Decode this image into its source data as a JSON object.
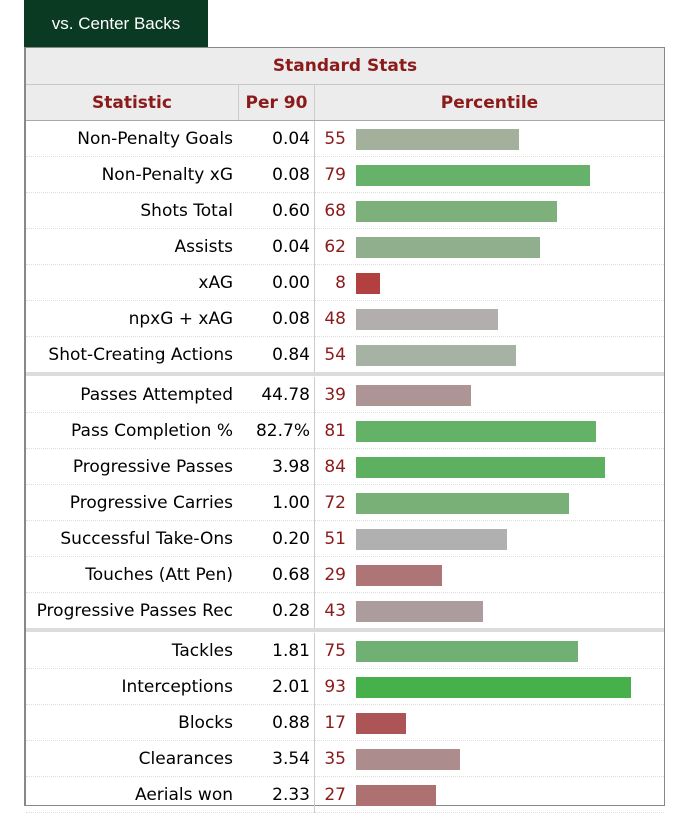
{
  "tab": {
    "label": "vs. Center Backs"
  },
  "table": {
    "title": "Standard Stats",
    "headers": {
      "statistic": "Statistic",
      "per90": "Per 90",
      "percentile": "Percentile"
    },
    "groups": [
      [
        {
          "stat": "Non-Penalty Goals",
          "per90": "0.04",
          "pct": 55,
          "color": "#a2b09c"
        },
        {
          "stat": "Non-Penalty xG",
          "per90": "0.08",
          "pct": 79,
          "color": "#67b26a"
        },
        {
          "stat": "Shots Total",
          "per90": "0.60",
          "pct": 68,
          "color": "#7db07b"
        },
        {
          "stat": "Assists",
          "per90": "0.04",
          "pct": 62,
          "color": "#90b08d"
        },
        {
          "stat": "xAG",
          "per90": "0.00",
          "pct": 8,
          "color": "#b1403f"
        },
        {
          "stat": "npxG + xAG",
          "per90": "0.08",
          "pct": 48,
          "color": "#b2aeae"
        },
        {
          "stat": "Shot-Creating Actions",
          "per90": "0.84",
          "pct": 54,
          "color": "#a6b2a4"
        }
      ],
      [
        {
          "stat": "Passes Attempted",
          "per90": "44.78",
          "pct": 39,
          "color": "#ad9595"
        },
        {
          "stat": "Pass Completion %",
          "per90": "82.7%",
          "pct": 81,
          "color": "#63b267"
        },
        {
          "stat": "Progressive Passes",
          "per90": "3.98",
          "pct": 84,
          "color": "#5cb060"
        },
        {
          "stat": "Progressive Carries",
          "per90": "1.00",
          "pct": 72,
          "color": "#78b078"
        },
        {
          "stat": "Successful Take-Ons",
          "per90": "0.20",
          "pct": 51,
          "color": "#b0b0b0"
        },
        {
          "stat": "Touches (Att Pen)",
          "per90": "0.68",
          "pct": 29,
          "color": "#ad7576"
        },
        {
          "stat": "Progressive Passes Rec",
          "per90": "0.28",
          "pct": 43,
          "color": "#ad9c9d"
        }
      ],
      [
        {
          "stat": "Tackles",
          "per90": "1.81",
          "pct": 75,
          "color": "#70b072"
        },
        {
          "stat": "Interceptions",
          "per90": "2.01",
          "pct": 93,
          "color": "#46b04a"
        },
        {
          "stat": "Blocks",
          "per90": "0.88",
          "pct": 17,
          "color": "#ad5556"
        },
        {
          "stat": "Clearances",
          "per90": "3.54",
          "pct": 35,
          "color": "#ad8c8d"
        },
        {
          "stat": "Aerials won",
          "per90": "2.33",
          "pct": 27,
          "color": "#ad7172"
        }
      ]
    ]
  }
}
